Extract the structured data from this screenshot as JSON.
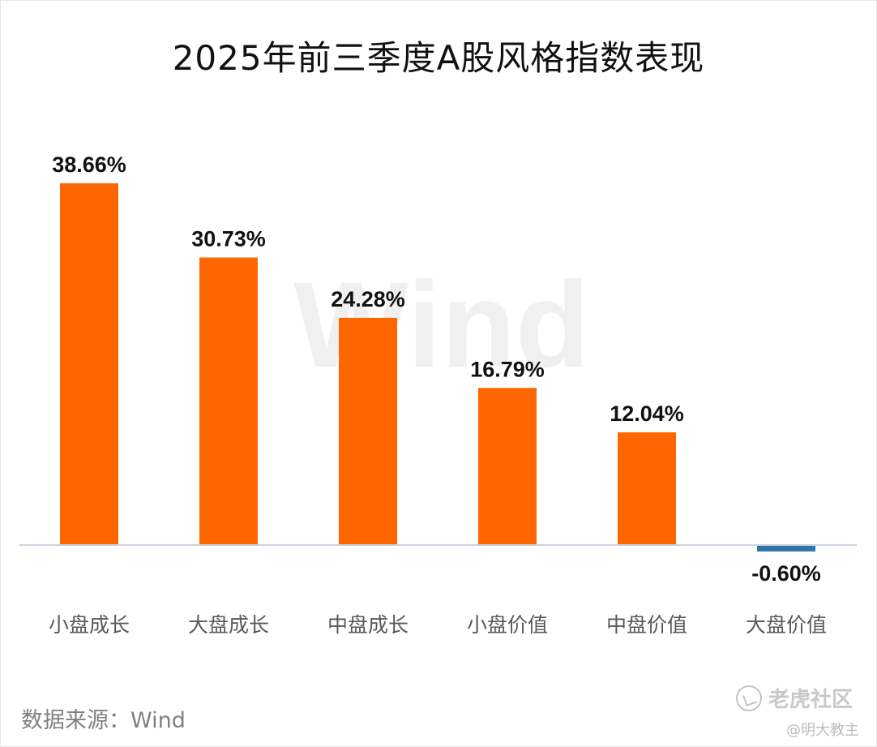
{
  "title": "2025年前三季度A股风格指数表现",
  "chart_data": {
    "type": "bar",
    "categories": [
      "小盘成长",
      "大盘成长",
      "中盘成长",
      "小盘价值",
      "中盘价值",
      "大盘价值"
    ],
    "values": [
      38.66,
      30.73,
      24.28,
      16.79,
      12.04,
      -0.6
    ],
    "value_labels": [
      "38.66%",
      "30.73%",
      "24.28%",
      "16.79%",
      "12.04%",
      "-0.60%"
    ],
    "unit": "%",
    "colors": {
      "positive": "#FF6600",
      "negative": "#2E75A7"
    },
    "grid": false,
    "legend": false
  },
  "background_watermark": "Wind",
  "source": "数据来源：Wind",
  "watermark": {
    "community": "老虎社区",
    "user": "@明大教主",
    "icon": "tiger-community-logo-icon"
  }
}
